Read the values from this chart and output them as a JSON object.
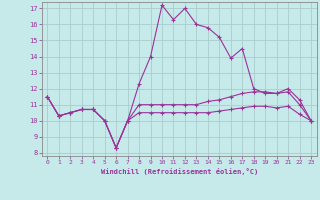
{
  "xlabel": "Windchill (Refroidissement éolien,°C)",
  "bg_color": "#c6eaea",
  "line_color": "#993399",
  "grid_color": "#aacccc",
  "spine_color": "#888888",
  "hours": [
    0,
    1,
    2,
    3,
    4,
    5,
    6,
    7,
    8,
    9,
    10,
    11,
    12,
    13,
    14,
    15,
    16,
    17,
    18,
    19,
    20,
    21,
    22,
    23
  ],
  "temp": [
    11.5,
    10.3,
    10.5,
    10.7,
    10.7,
    10.0,
    8.3,
    10.0,
    12.3,
    14.0,
    17.2,
    16.3,
    17.0,
    16.0,
    15.8,
    15.2,
    13.9,
    14.5,
    12.0,
    11.7,
    11.7,
    12.0,
    11.3,
    10.0
  ],
  "windchill": [
    11.5,
    10.3,
    10.5,
    10.7,
    10.7,
    10.0,
    8.3,
    10.0,
    11.0,
    11.0,
    11.0,
    11.0,
    11.0,
    11.0,
    11.2,
    11.3,
    11.5,
    11.7,
    11.8,
    11.8,
    11.7,
    11.8,
    11.0,
    10.0
  ],
  "feeltemp": [
    11.5,
    10.3,
    10.5,
    10.7,
    10.7,
    10.0,
    8.3,
    10.0,
    10.5,
    10.5,
    10.5,
    10.5,
    10.5,
    10.5,
    10.5,
    10.6,
    10.7,
    10.8,
    10.9,
    10.9,
    10.8,
    10.9,
    10.4,
    10.0
  ],
  "ylim": [
    7.8,
    17.4
  ],
  "yticks": [
    8,
    9,
    10,
    11,
    12,
    13,
    14,
    15,
    16,
    17
  ],
  "xlim": [
    -0.5,
    23.5
  ]
}
